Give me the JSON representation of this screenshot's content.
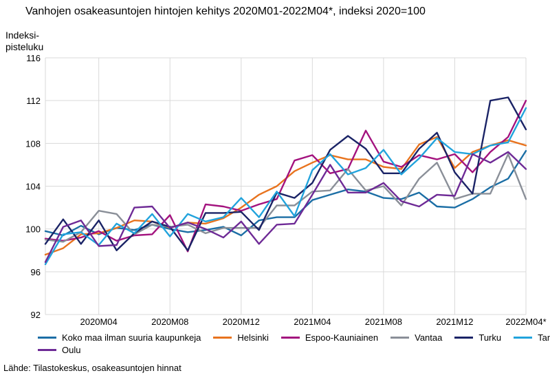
{
  "title": "Vanhojen osakeasuntojen hintojen kehitys 2020M01-2022M04*, indeksi 2020=100",
  "ylabel_line1": "Indeksi-",
  "ylabel_line2": "pisteluku",
  "source": "Lähde: Tilastokeskus, osakeasuntojen hinnat",
  "chart_data": {
    "type": "line",
    "title": "Vanhojen osakeasuntojen hintojen kehitys 2020M01-2022M04*, indeksi 2020=100",
    "ylabel": "Indeksipisteluku",
    "xlabel": "",
    "ylim": [
      92,
      116
    ],
    "yticks": [
      92,
      96,
      100,
      104,
      108,
      112,
      116
    ],
    "grid": true,
    "legend_position": "bottom",
    "x": [
      "2020M01",
      "2020M02",
      "2020M03",
      "2020M04",
      "2020M05",
      "2020M06",
      "2020M07",
      "2020M08",
      "2020M09",
      "2020M10",
      "2020M11",
      "2020M12",
      "2021M01",
      "2021M02",
      "2021M03",
      "2021M04",
      "2021M05",
      "2021M06",
      "2021M07",
      "2021M08",
      "2021M09",
      "2021M10",
      "2021M11",
      "2021M12",
      "2022M01",
      "2022M02",
      "2022M03",
      "2022M04*"
    ],
    "xtick_labels": [
      "2020M04",
      "2020M08",
      "2020M12",
      "2021M04",
      "2021M08",
      "2021M12",
      "2022M04*"
    ],
    "series": [
      {
        "name": "Koko maa ilman suuria kaupunkeja",
        "color": "#1b6ea5",
        "values": [
          99.8,
          99.4,
          100.3,
          99.5,
          100.1,
          99.9,
          100.4,
          100.0,
          99.7,
          99.9,
          100.2,
          99.4,
          100.8,
          101.1,
          101.1,
          102.7,
          103.2,
          103.7,
          103.5,
          102.9,
          102.8,
          103.4,
          102.1,
          102.0,
          102.8,
          103.9,
          104.7,
          107.3
        ]
      },
      {
        "name": "Helsinki",
        "color": "#e8731e",
        "values": [
          97.6,
          98.2,
          99.5,
          99.6,
          100.1,
          100.8,
          100.7,
          100.1,
          100.6,
          100.5,
          101.0,
          102.0,
          103.2,
          104.0,
          105.4,
          106.2,
          106.9,
          106.5,
          106.5,
          105.8,
          105.6,
          107.9,
          108.6,
          105.7,
          107.2,
          107.8,
          108.3,
          107.8
        ]
      },
      {
        "name": "Espoo-Kauniainen",
        "color": "#a3127e",
        "values": [
          99.1,
          98.9,
          99.2,
          99.8,
          98.9,
          99.4,
          99.5,
          101.3,
          97.9,
          102.3,
          102.1,
          101.7,
          102.3,
          102.8,
          106.4,
          106.9,
          105.2,
          105.6,
          109.2,
          106.3,
          105.8,
          106.9,
          106.5,
          107.0,
          105.3,
          107.2,
          108.6,
          112.0
        ]
      },
      {
        "name": "Vantaa",
        "color": "#8a8f98",
        "values": [
          99.0,
          98.8,
          99.7,
          101.7,
          101.4,
          99.5,
          100.4,
          100.2,
          100.4,
          99.6,
          100.1,
          100.1,
          100.1,
          102.2,
          102.2,
          103.5,
          103.6,
          105.6,
          103.6,
          104.0,
          102.2,
          104.7,
          106.2,
          102.8,
          103.3,
          103.3,
          107.0,
          102.8
        ]
      },
      {
        "name": "Turku",
        "color": "#1a2366",
        "values": [
          98.6,
          100.9,
          98.6,
          100.8,
          98.0,
          99.6,
          100.7,
          100.2,
          98.0,
          101.5,
          101.5,
          101.6,
          99.9,
          103.4,
          102.9,
          104.3,
          107.4,
          108.7,
          107.5,
          105.2,
          105.2,
          107.5,
          109.0,
          105.3,
          103.3,
          112.0,
          112.3,
          109.3
        ]
      },
      {
        "name": "Tampere",
        "color": "#21a3dc",
        "values": [
          96.7,
          99.5,
          99.7,
          98.5,
          100.5,
          99.6,
          101.4,
          99.3,
          101.4,
          100.7,
          101.1,
          102.9,
          101.1,
          103.5,
          101.2,
          105.5,
          107.0,
          105.1,
          105.7,
          107.4,
          105.1,
          106.6,
          108.5,
          107.2,
          107.0,
          107.8,
          108.1,
          111.3
        ]
      },
      {
        "name": "Oulu",
        "color": "#6e2a96",
        "values": [
          96.9,
          100.2,
          100.8,
          98.4,
          98.5,
          102.0,
          102.1,
          100.1,
          100.6,
          100.0,
          99.2,
          100.7,
          98.6,
          100.4,
          100.5,
          103.2,
          106.0,
          103.4,
          103.4,
          104.3,
          102.6,
          102.1,
          103.2,
          103.1,
          107.0,
          106.2,
          107.2,
          105.6
        ]
      }
    ]
  }
}
